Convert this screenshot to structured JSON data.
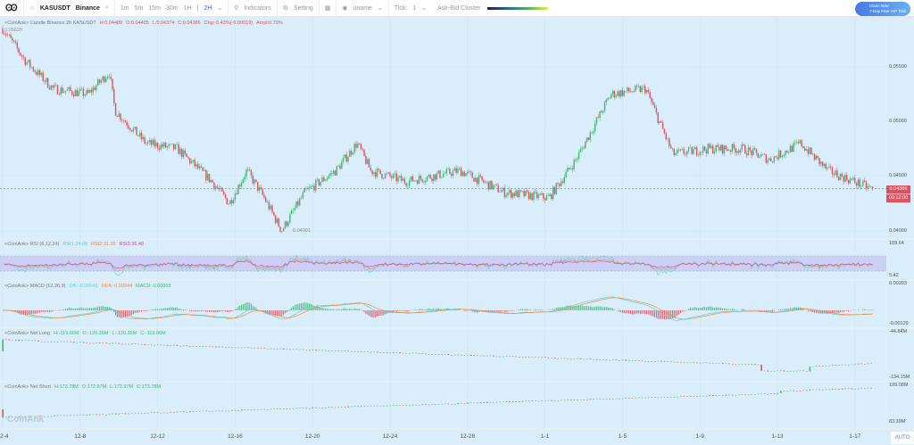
{
  "toolbar": {
    "symbol": "KASUSDT",
    "exchange": "Binance",
    "intervals": [
      "1m",
      "5m",
      "15m",
      "30m",
      "1H",
      "2H"
    ],
    "selected_interval": "2H",
    "indicators": "Indicators",
    "setting": "Setting",
    "user": "uname",
    "tick_label": "Tick:",
    "tick_value": "1",
    "cluster": "Ask-Bid Cluster",
    "vip_line1": "Claim Now",
    "vip_line2": "7-Day Free VIP Trial"
  },
  "main": {
    "prefix": "<CoinAnk> Candle  Binance 2h KASUSDT",
    "h": "H:0.04409",
    "o": "O:0.04405",
    "l": "L:0.04374",
    "c": "C:0.04386",
    "chg": "Chg:-0.43%(-0.00019)",
    "amp": "Ampl:0.79%",
    "high_marker": "0.05828",
    "low_marker": "0.04001",
    "price_tag": "0.04386",
    "countdown": "00:12:00",
    "axis": [
      "0.05500",
      "0.05000",
      "0.04500",
      "0.04000"
    ]
  },
  "rsi": {
    "prefix": "<CoinAnk> RSI  (6,12,24)",
    "rsi1": "RSI1:24.08",
    "rsi2": "RSI2:31.36",
    "rsi3": "RSI3:36.48",
    "axis": [
      "109.64",
      "5.42"
    ]
  },
  "macd": {
    "prefix": "<CoinAnk> MACD  (12,26,9)",
    "dif": "DIF:-0.00045",
    "dea": "DEA:-0.00044",
    "macd": "MACD:-0.00003",
    "axis": [
      "0.00203",
      "-0.00129"
    ]
  },
  "net_long": {
    "prefix": "<CoinAnk> Net Long",
    "h": "H:-119.06M",
    "o": "O:-120.35M",
    "l": "L:-120.35M",
    "c": "C:-119.06M",
    "axis": [
      "-44.84M",
      "-134.15M"
    ]
  },
  "net_short": {
    "prefix": "<CoinAnk> Net Short",
    "h": "H:173.78M",
    "o": "O:172.97M",
    "l": "L:172.97M",
    "c": "C:173.78M",
    "axis": [
      "199.08M",
      "83.39M"
    ]
  },
  "xaxis": [
    "12-4",
    "12-8",
    "12-12",
    "12-16",
    "12-20",
    "12-24",
    "12-28",
    "1-1",
    "1-5",
    "1-9",
    "1-13",
    "1-17"
  ],
  "auto": "AUTO",
  "watermark": "CoinAnk",
  "colors": {
    "up": "#3cb878",
    "down": "#e05060",
    "bg": "#d9eefa"
  },
  "chart_data": {
    "type": "candlestick",
    "interval": "2h",
    "price_path": [
      [
        0,
        0.0585
      ],
      [
        1.2,
        0.0555
      ],
      [
        2.6,
        0.053
      ],
      [
        4.4,
        0.0525
      ],
      [
        5.5,
        0.0545
      ],
      [
        5.8,
        0.051
      ],
      [
        7.4,
        0.048
      ],
      [
        9,
        0.0475
      ],
      [
        10.8,
        0.0445
      ],
      [
        11.7,
        0.0425
      ],
      [
        12.6,
        0.0455
      ],
      [
        13.5,
        0.043
      ],
      [
        14.4,
        0.04
      ],
      [
        15.6,
        0.0435
      ],
      [
        17.2,
        0.0455
      ],
      [
        18.3,
        0.048
      ],
      [
        19,
        0.0455
      ],
      [
        20.8,
        0.0445
      ],
      [
        23.6,
        0.0455
      ],
      [
        25.9,
        0.0435
      ],
      [
        28.2,
        0.043
      ],
      [
        29.6,
        0.0465
      ],
      [
        31.4,
        0.0525
      ],
      [
        33.2,
        0.053
      ],
      [
        34.6,
        0.047
      ],
      [
        36.4,
        0.0475
      ],
      [
        38.2,
        0.0475
      ],
      [
        39.6,
        0.0465
      ],
      [
        41.2,
        0.048
      ],
      [
        42.6,
        0.0455
      ],
      [
        44.8,
        0.04386
      ]
    ],
    "ylim": [
      0.04,
      0.0585
    ]
  }
}
